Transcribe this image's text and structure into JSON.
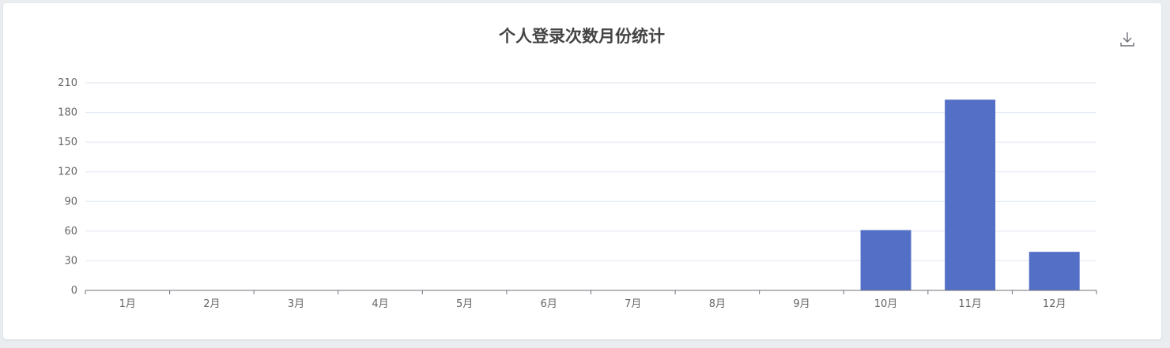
{
  "chart_data": {
    "type": "bar",
    "title": "个人登录次数月份统计",
    "categories": [
      "1月",
      "2月",
      "3月",
      "4月",
      "5月",
      "6月",
      "7月",
      "8月",
      "9月",
      "10月",
      "11月",
      "12月"
    ],
    "values": [
      0,
      0,
      0,
      0,
      0,
      0,
      0,
      0,
      0,
      61,
      193,
      39
    ],
    "ylim": [
      0,
      210
    ],
    "yticks": [
      0,
      30,
      60,
      90,
      120,
      150,
      180,
      210
    ],
    "xlabel": "",
    "ylabel": "",
    "grid": true,
    "bar_color": "#5470c6",
    "grid_color": "#e0e6f1",
    "axis_color": "#6e7079"
  },
  "toolbar": {
    "download_icon": "download-icon"
  }
}
